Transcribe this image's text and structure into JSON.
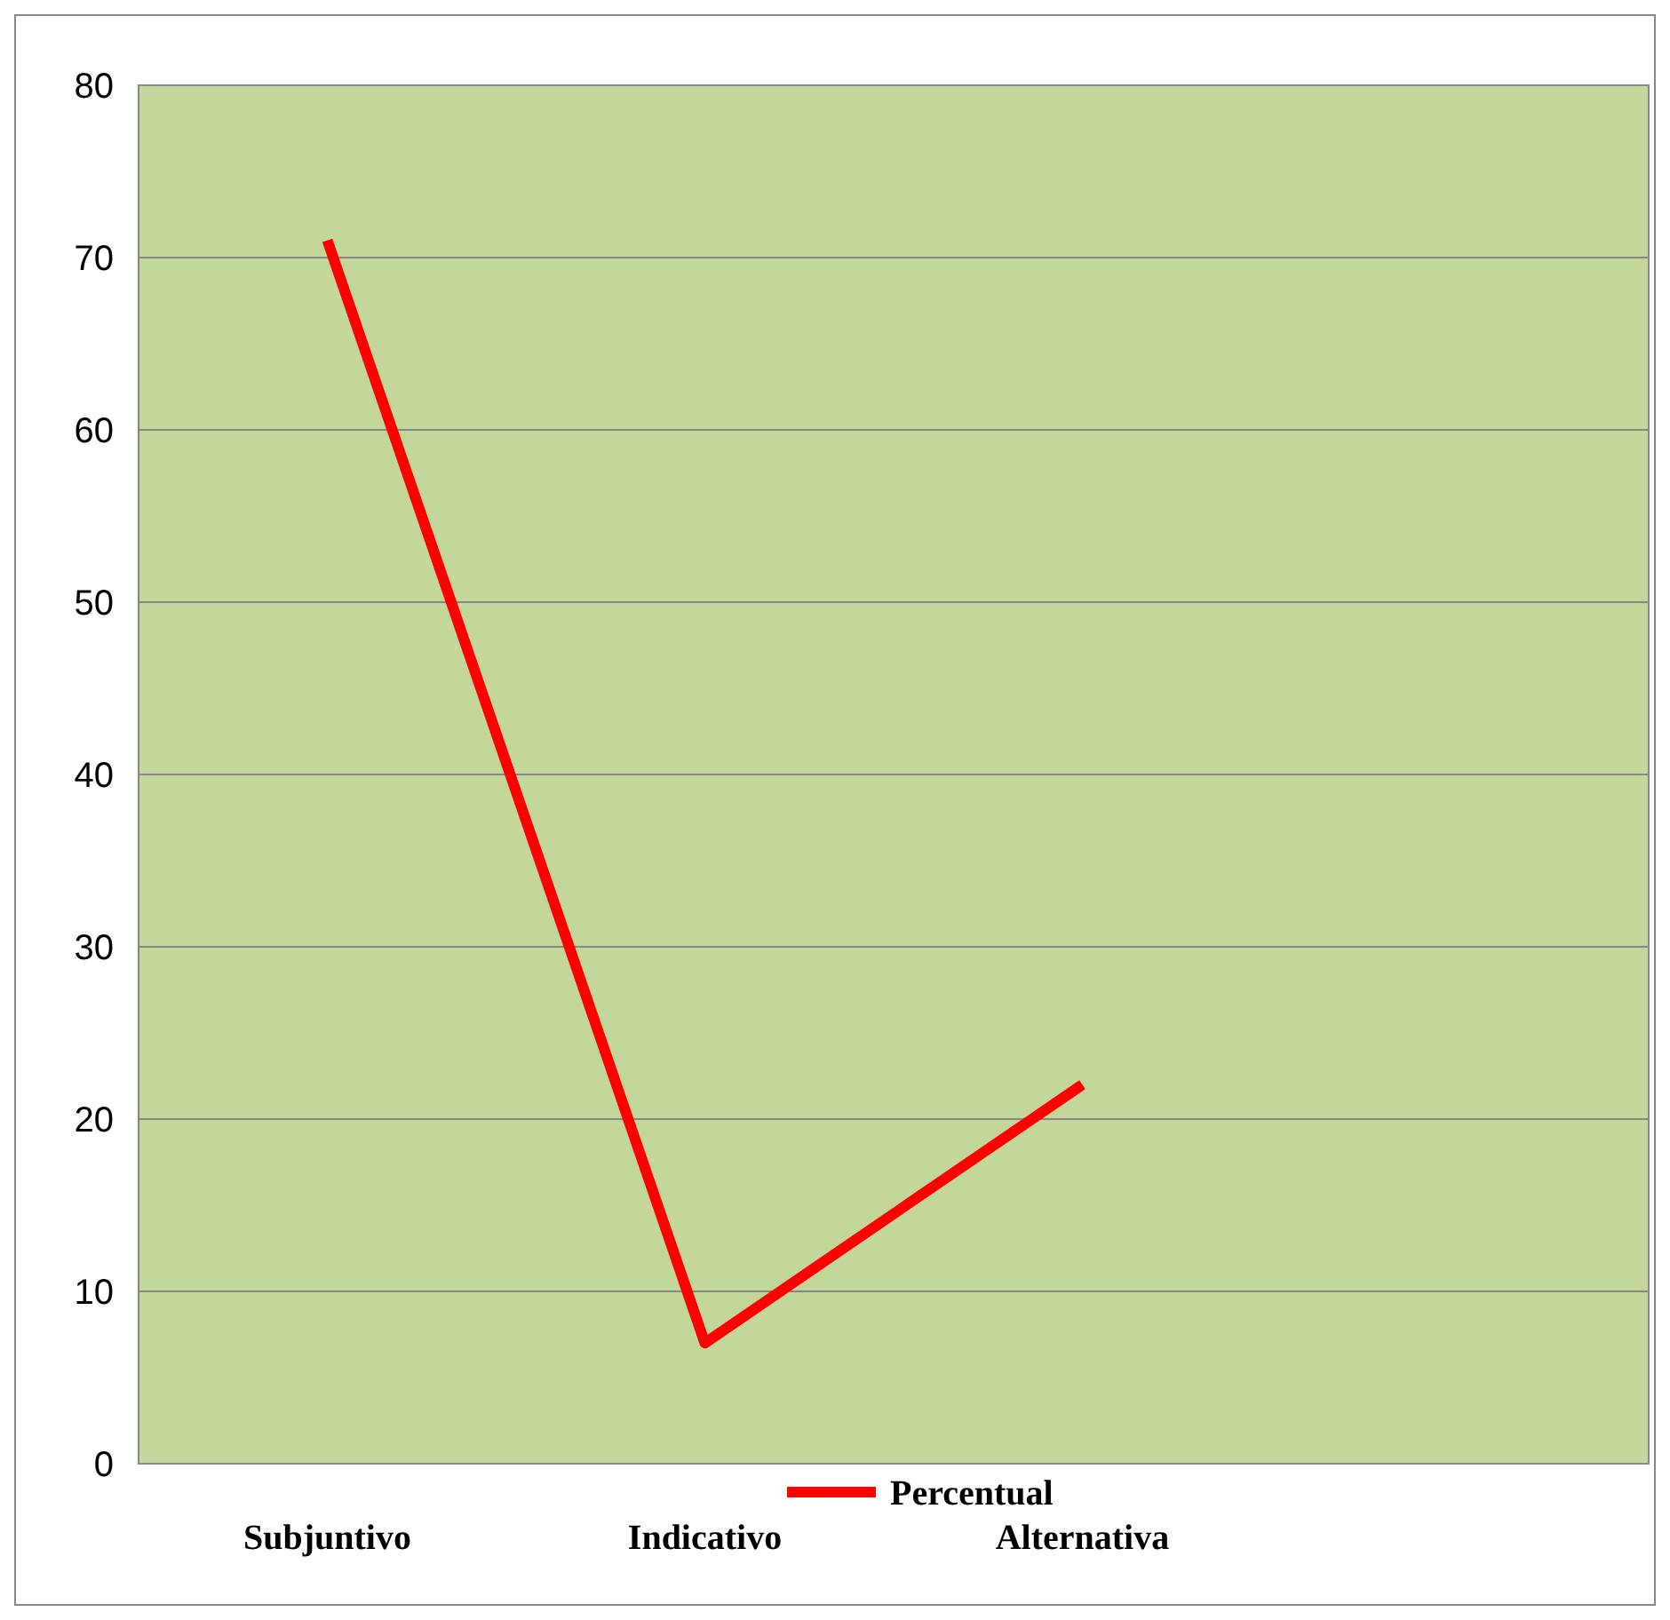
{
  "chart_data": {
    "type": "line",
    "categories": [
      "Subjuntivo",
      "Indicativo",
      "Alternativa",
      null
    ],
    "series": [
      {
        "name": "Percentual",
        "color": "#ff0000",
        "values": [
          71,
          7,
          22,
          null
        ]
      }
    ],
    "ylim": [
      0,
      80
    ],
    "yticks": [
      0,
      10,
      20,
      30,
      40,
      50,
      60,
      70,
      80
    ],
    "grid": "y",
    "legend": "bottom",
    "marker": "none"
  }
}
